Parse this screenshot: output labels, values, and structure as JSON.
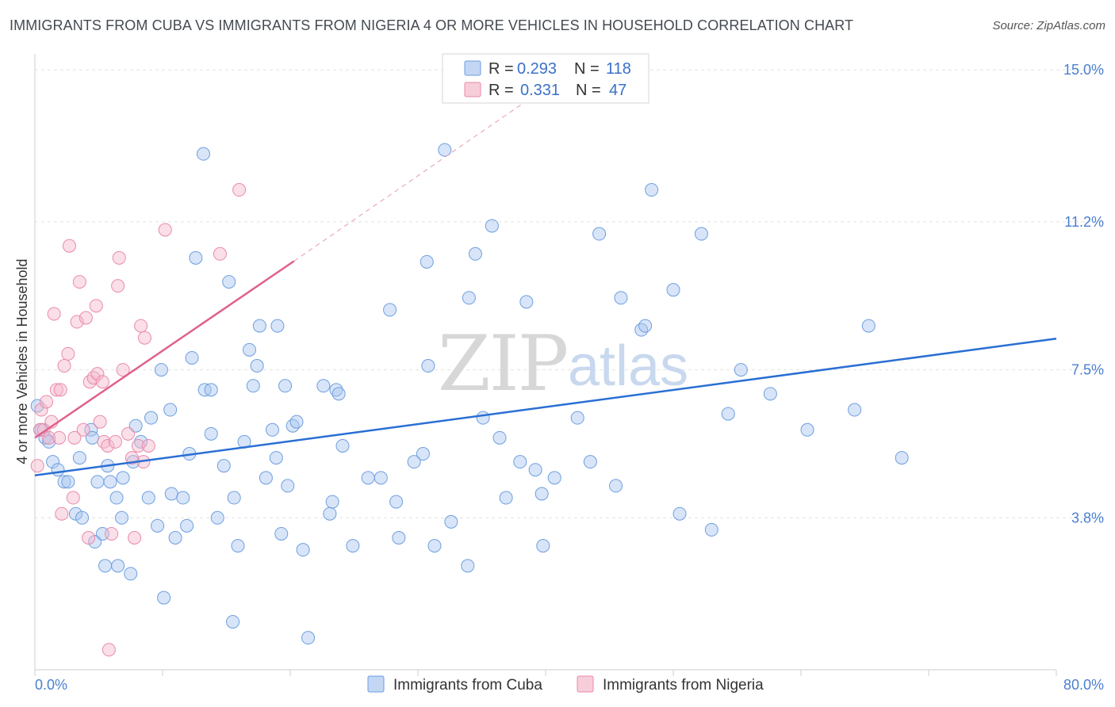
{
  "title": "IMMIGRANTS FROM CUBA VS IMMIGRANTS FROM NIGERIA 4 OR MORE VEHICLES IN HOUSEHOLD CORRELATION CHART",
  "source": "Source: ZipAtlas.com",
  "watermark": {
    "zip": "ZIP",
    "atlas": "atlas"
  },
  "colors": {
    "cuba_fill": "#a9c6ef",
    "cuba_stroke": "#6e9ee0",
    "cuba_line": "#2a6fd4",
    "nigeria_fill": "#f5b8cb",
    "nigeria_stroke": "#ea8aaa",
    "nigeria_line": "#e0608c",
    "tick_text": "#4a7fd0",
    "grid": "#e2e2e2"
  },
  "legend": {
    "rows": [
      {
        "r_label": "R =",
        "r_value": "0.293",
        "n_label": "N =",
        "n_value": "118"
      },
      {
        "r_label": "R =",
        "r_value": "0.331",
        "n_label": "N =",
        "n_value": "47"
      }
    ]
  },
  "chart_data": {
    "type": "scatter",
    "title": "IMMIGRANTS FROM CUBA VS IMMIGRANTS FROM NIGERIA 4 OR MORE VEHICLES IN HOUSEHOLD CORRELATION CHART",
    "xlabel": "",
    "ylabel": "4 or more Vehicles in Household",
    "xlim": [
      0,
      80
    ],
    "ylim": [
      0,
      15.4
    ],
    "x_tick_labels": [
      "0.0%",
      "80.0%"
    ],
    "y_ticks": [
      3.8,
      7.5,
      11.2,
      15.0
    ],
    "y_tick_labels": [
      "3.8%",
      "7.5%",
      "11.2%",
      "15.0%"
    ],
    "legend_position": "top-center",
    "series": [
      {
        "name": "Immigrants from Cuba",
        "R": 0.293,
        "N": 118,
        "trend": {
          "x": [
            0,
            80
          ],
          "y": [
            4.86,
            8.28
          ]
        },
        "points": [
          [
            0.2,
            6.6
          ],
          [
            0.5,
            6.0
          ],
          [
            0.8,
            5.8
          ],
          [
            1.1,
            5.7
          ],
          [
            1.4,
            5.2
          ],
          [
            1.8,
            5.0
          ],
          [
            2.3,
            4.7
          ],
          [
            2.6,
            4.7
          ],
          [
            3.2,
            3.9
          ],
          [
            3.5,
            5.3
          ],
          [
            3.7,
            3.8
          ],
          [
            4.4,
            6.0
          ],
          [
            4.5,
            5.8
          ],
          [
            4.7,
            3.2
          ],
          [
            4.9,
            4.7
          ],
          [
            5.3,
            3.4
          ],
          [
            5.5,
            2.6
          ],
          [
            5.7,
            5.1
          ],
          [
            5.9,
            4.7
          ],
          [
            6.4,
            4.3
          ],
          [
            6.5,
            2.6
          ],
          [
            6.8,
            3.8
          ],
          [
            6.9,
            4.8
          ],
          [
            7.5,
            2.4
          ],
          [
            7.7,
            5.2
          ],
          [
            7.9,
            6.1
          ],
          [
            8.3,
            5.7
          ],
          [
            8.9,
            4.3
          ],
          [
            9.1,
            6.3
          ],
          [
            9.6,
            3.6
          ],
          [
            9.9,
            7.5
          ],
          [
            10.1,
            1.8
          ],
          [
            10.6,
            6.5
          ],
          [
            10.7,
            4.4
          ],
          [
            11.0,
            3.3
          ],
          [
            11.6,
            4.3
          ],
          [
            11.9,
            3.6
          ],
          [
            12.1,
            5.4
          ],
          [
            12.3,
            7.8
          ],
          [
            12.6,
            10.3
          ],
          [
            13.2,
            12.9
          ],
          [
            13.3,
            7.0
          ],
          [
            13.8,
            7.0
          ],
          [
            13.8,
            5.9
          ],
          [
            14.3,
            3.8
          ],
          [
            14.8,
            5.1
          ],
          [
            15.2,
            9.7
          ],
          [
            15.5,
            1.2
          ],
          [
            15.6,
            4.3
          ],
          [
            15.9,
            3.1
          ],
          [
            16.4,
            5.7
          ],
          [
            16.8,
            8.0
          ],
          [
            17.1,
            7.1
          ],
          [
            17.4,
            7.6
          ],
          [
            17.6,
            8.6
          ],
          [
            18.1,
            4.8
          ],
          [
            18.6,
            6.0
          ],
          [
            18.9,
            5.3
          ],
          [
            19.0,
            8.6
          ],
          [
            19.3,
            3.4
          ],
          [
            19.6,
            7.1
          ],
          [
            19.8,
            4.6
          ],
          [
            20.2,
            6.1
          ],
          [
            20.5,
            6.2
          ],
          [
            21.0,
            3.0
          ],
          [
            21.4,
            0.8
          ],
          [
            22.6,
            7.1
          ],
          [
            23.1,
            3.9
          ],
          [
            23.3,
            4.2
          ],
          [
            23.6,
            7.0
          ],
          [
            23.8,
            6.9
          ],
          [
            24.1,
            5.6
          ],
          [
            24.9,
            3.1
          ],
          [
            26.1,
            4.8
          ],
          [
            27.1,
            4.8
          ],
          [
            27.8,
            9.0
          ],
          [
            28.3,
            4.2
          ],
          [
            28.5,
            3.3
          ],
          [
            29.7,
            5.2
          ],
          [
            30.4,
            5.4
          ],
          [
            30.8,
            7.6
          ],
          [
            30.7,
            10.2
          ],
          [
            31.3,
            3.1
          ],
          [
            32.1,
            13.0
          ],
          [
            32.6,
            3.7
          ],
          [
            33.9,
            2.6
          ],
          [
            34.0,
            9.3
          ],
          [
            34.5,
            10.4
          ],
          [
            35.1,
            6.3
          ],
          [
            35.8,
            11.1
          ],
          [
            36.4,
            5.8
          ],
          [
            36.9,
            4.3
          ],
          [
            38.0,
            5.2
          ],
          [
            38.5,
            9.2
          ],
          [
            39.2,
            5.0
          ],
          [
            39.7,
            4.4
          ],
          [
            39.8,
            3.1
          ],
          [
            40.7,
            4.8
          ],
          [
            42.5,
            6.3
          ],
          [
            43.5,
            5.2
          ],
          [
            44.2,
            10.9
          ],
          [
            45.5,
            4.6
          ],
          [
            45.9,
            9.3
          ],
          [
            47.5,
            8.5
          ],
          [
            47.8,
            8.6
          ],
          [
            48.3,
            12.0
          ],
          [
            50.0,
            9.5
          ],
          [
            50.5,
            3.9
          ],
          [
            52.2,
            10.9
          ],
          [
            53.0,
            3.5
          ],
          [
            54.3,
            6.4
          ],
          [
            55.3,
            7.5
          ],
          [
            57.6,
            6.9
          ],
          [
            60.5,
            6.0
          ],
          [
            64.2,
            6.5
          ],
          [
            65.3,
            8.6
          ],
          [
            67.9,
            5.3
          ]
        ]
      },
      {
        "name": "Immigrants from Nigeria",
        "R": 0.331,
        "N": 47,
        "trend": {
          "x": [
            0,
            20.3
          ],
          "y": [
            5.8,
            10.22
          ]
        },
        "trend_ext": {
          "x": [
            20.3,
            38.4
          ],
          "y": [
            10.22,
            14.2
          ]
        },
        "points": [
          [
            0.2,
            5.1
          ],
          [
            0.4,
            6.0
          ],
          [
            0.5,
            6.5
          ],
          [
            0.7,
            6.0
          ],
          [
            0.9,
            6.7
          ],
          [
            1.1,
            5.8
          ],
          [
            1.3,
            6.2
          ],
          [
            1.5,
            8.9
          ],
          [
            1.7,
            7.0
          ],
          [
            1.9,
            5.8
          ],
          [
            2.1,
            3.9
          ],
          [
            2.3,
            7.6
          ],
          [
            2.6,
            7.9
          ],
          [
            2.7,
            10.6
          ],
          [
            3.0,
            4.3
          ],
          [
            3.1,
            5.8
          ],
          [
            3.3,
            8.7
          ],
          [
            3.5,
            9.7
          ],
          [
            3.8,
            6.0
          ],
          [
            4.0,
            8.8
          ],
          [
            4.2,
            3.3
          ],
          [
            4.3,
            7.2
          ],
          [
            4.6,
            7.3
          ],
          [
            4.8,
            9.1
          ],
          [
            4.9,
            7.4
          ],
          [
            5.1,
            6.2
          ],
          [
            5.3,
            7.2
          ],
          [
            5.4,
            5.7
          ],
          [
            5.7,
            5.6
          ],
          [
            5.8,
            0.5
          ],
          [
            6.0,
            3.4
          ],
          [
            6.3,
            5.7
          ],
          [
            6.5,
            9.6
          ],
          [
            6.6,
            10.3
          ],
          [
            6.9,
            7.5
          ],
          [
            7.3,
            5.9
          ],
          [
            7.6,
            5.3
          ],
          [
            7.8,
            3.3
          ],
          [
            8.1,
            5.6
          ],
          [
            8.3,
            8.6
          ],
          [
            8.5,
            5.2
          ],
          [
            8.6,
            8.3
          ],
          [
            8.9,
            5.6
          ],
          [
            10.2,
            11.0
          ],
          [
            14.5,
            10.4
          ],
          [
            16.0,
            12.0
          ],
          [
            2.0,
            7.0
          ]
        ]
      }
    ]
  },
  "bottom_legend": [
    {
      "label": "Immigrants from Cuba"
    },
    {
      "label": "Immigrants from Nigeria"
    }
  ]
}
